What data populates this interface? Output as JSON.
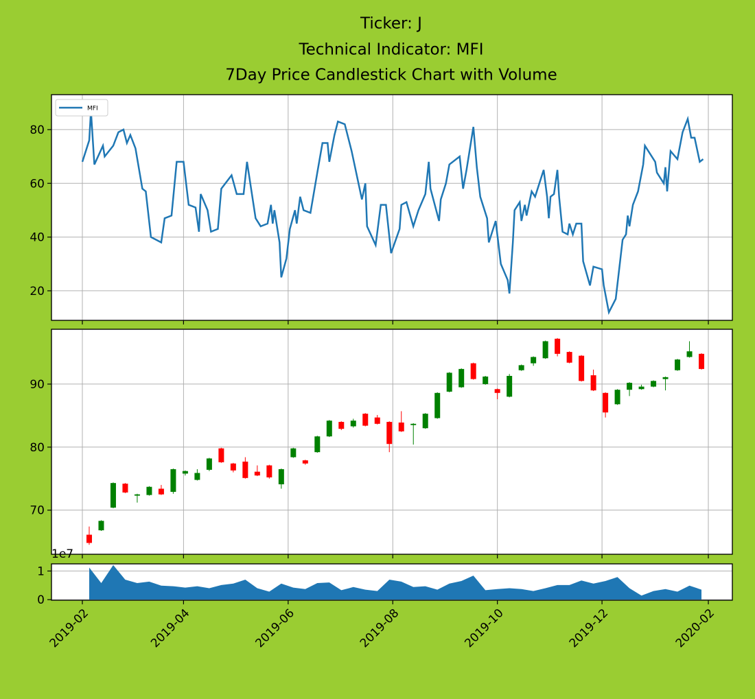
{
  "chart_data": [
    {
      "type": "line",
      "title": [
        "Ticker: J",
        "Technical Indicator: MFI",
        "7Day Price Candlestick Chart with Volume"
      ],
      "x": [
        "2019-02-01",
        "2019-02-05",
        "2019-02-06",
        "2019-02-08",
        "2019-02-13",
        "2019-02-14",
        "2019-02-19",
        "2019-02-22",
        "2019-02-25",
        "2019-02-27",
        "2019-03-01",
        "2019-03-04",
        "2019-03-08",
        "2019-03-10",
        "2019-03-13",
        "2019-03-19",
        "2019-03-21",
        "2019-03-25",
        "2019-03-28",
        "2019-04-01",
        "2019-04-04",
        "2019-04-08",
        "2019-04-10",
        "2019-04-11",
        "2019-04-15",
        "2019-04-17",
        "2019-04-21",
        "2019-04-23",
        "2019-04-29",
        "2019-05-02",
        "2019-05-06",
        "2019-05-08",
        "2019-05-13",
        "2019-05-16",
        "2019-05-20",
        "2019-05-22",
        "2019-05-23",
        "2019-05-24",
        "2019-05-27",
        "2019-05-28",
        "2019-05-31",
        "2019-06-02",
        "2019-06-05",
        "2019-06-06",
        "2019-06-08",
        "2019-06-10",
        "2019-06-14",
        "2019-06-18",
        "2019-06-21",
        "2019-06-24",
        "2019-06-25",
        "2019-06-28",
        "2019-06-30",
        "2019-07-04",
        "2019-07-08",
        "2019-07-14",
        "2019-07-16",
        "2019-07-17",
        "2019-07-22",
        "2019-07-25",
        "2019-07-28",
        "2019-07-31",
        "2019-08-05",
        "2019-08-06",
        "2019-08-09",
        "2019-08-13",
        "2019-08-16",
        "2019-08-20",
        "2019-08-22",
        "2019-08-23",
        "2019-08-28",
        "2019-08-29",
        "2019-09-01",
        "2019-09-03",
        "2019-09-09",
        "2019-09-11",
        "2019-09-13",
        "2019-09-17",
        "2019-09-19",
        "2019-09-21",
        "2019-09-25",
        "2019-09-26",
        "2019-09-30",
        "2019-10-03",
        "2019-10-07",
        "2019-10-08",
        "2019-10-10",
        "2019-10-11",
        "2019-10-14",
        "2019-10-15",
        "2019-10-17",
        "2019-10-18",
        "2019-10-21",
        "2019-10-23",
        "2019-10-28",
        "2019-10-30",
        "2019-10-31",
        "2019-11-01",
        "2019-11-03",
        "2019-11-05",
        "2019-11-06",
        "2019-11-08",
        "2019-11-11",
        "2019-11-12",
        "2019-11-14",
        "2019-11-16",
        "2019-11-19",
        "2019-11-20",
        "2019-11-24",
        "2019-11-26",
        "2019-12-01",
        "2019-12-02",
        "2019-12-05",
        "2019-12-09",
        "2019-12-13",
        "2019-12-15",
        "2019-12-16",
        "2019-12-17",
        "2019-12-19",
        "2019-12-22",
        "2019-12-25",
        "2019-12-26",
        "2020-01-01",
        "2020-01-02",
        "2020-01-06",
        "2020-01-07",
        "2020-01-08",
        "2020-01-10",
        "2020-01-14",
        "2020-01-17",
        "2020-01-20",
        "2020-01-22",
        "2020-01-24",
        "2020-01-27",
        "2020-01-29"
      ],
      "series": [
        {
          "name": "MFI",
          "color": "#1f77b4",
          "values": [
            68,
            76,
            87,
            67,
            74,
            70,
            74,
            79,
            80,
            75,
            78,
            73,
            58,
            57,
            40,
            38,
            47,
            48,
            68,
            68,
            52,
            51,
            42,
            56,
            50,
            42,
            43,
            58,
            63,
            56,
            56,
            68,
            47,
            44,
            45,
            52,
            45,
            50,
            38,
            25,
            32,
            43,
            50,
            45,
            55,
            50,
            49,
            64,
            75,
            75,
            68,
            78,
            83,
            82,
            72,
            54,
            60,
            44,
            37,
            52,
            52,
            34,
            43,
            52,
            53,
            44,
            50,
            56,
            68,
            58,
            46,
            54,
            60,
            67,
            70,
            58,
            65,
            81,
            66,
            55,
            47,
            38,
            46,
            30,
            24,
            19,
            38,
            50,
            53,
            46,
            52,
            48,
            57,
            55,
            65,
            55,
            47,
            55,
            56,
            65,
            55,
            42,
            41,
            45,
            41,
            45,
            45,
            31,
            22,
            29,
            28,
            22,
            12,
            17,
            39,
            41,
            48,
            44,
            52,
            57,
            67,
            74,
            68,
            64,
            60,
            66,
            57,
            72,
            69,
            79,
            84,
            77,
            77,
            68,
            69
          ]
        }
      ],
      "ylim": [
        9,
        93
      ],
      "yticks": [
        20,
        40,
        60,
        80
      ],
      "grid": true,
      "legend": "upper left"
    },
    {
      "type": "candlestick",
      "x": [
        "2019-02-05",
        "2019-02-12",
        "2019-02-19",
        "2019-02-26",
        "2019-03-05",
        "2019-03-12",
        "2019-03-19",
        "2019-03-26",
        "2019-04-02",
        "2019-04-09",
        "2019-04-16",
        "2019-04-23",
        "2019-04-30",
        "2019-05-07",
        "2019-05-14",
        "2019-05-21",
        "2019-05-28",
        "2019-06-04",
        "2019-06-11",
        "2019-06-18",
        "2019-06-25",
        "2019-07-02",
        "2019-07-09",
        "2019-07-16",
        "2019-07-23",
        "2019-07-30",
        "2019-08-06",
        "2019-08-13",
        "2019-08-20",
        "2019-08-27",
        "2019-09-03",
        "2019-09-10",
        "2019-09-17",
        "2019-09-24",
        "2019-10-01",
        "2019-10-08",
        "2019-10-15",
        "2019-10-22",
        "2019-10-29",
        "2019-11-05",
        "2019-11-12",
        "2019-11-19",
        "2019-11-26",
        "2019-12-03",
        "2019-12-10",
        "2019-12-17",
        "2019-12-24",
        "2019-12-31",
        "2020-01-07",
        "2020-01-14",
        "2020-01-21",
        "2020-01-28"
      ],
      "open": [
        66.1,
        66.8,
        70.4,
        74.2,
        72.3,
        72.4,
        73.4,
        72.9,
        75.8,
        74.8,
        76.4,
        79.8,
        77.4,
        77.7,
        76.1,
        77.1,
        74.1,
        78.4,
        77.9,
        79.2,
        81.7,
        84.0,
        83.3,
        85.3,
        84.7,
        84.0,
        83.9,
        83.5,
        83.0,
        84.6,
        88.8,
        89.5,
        93.3,
        90.0,
        89.2,
        88.0,
        92.2,
        93.3,
        94.1,
        97.2,
        95.1,
        94.5,
        91.4,
        88.6,
        86.8,
        89.1,
        89.2,
        89.6,
        90.8,
        92.2,
        94.3,
        94.8
      ],
      "high": [
        67.4,
        68.4,
        74.4,
        74.3,
        72.6,
        73.8,
        74.0,
        76.6,
        76.3,
        76.5,
        78.3,
        79.9,
        77.5,
        78.4,
        77.1,
        77.2,
        76.6,
        79.9,
        78.0,
        81.8,
        84.3,
        84.1,
        84.5,
        85.4,
        85.1,
        84.1,
        85.7,
        83.8,
        85.4,
        88.7,
        91.9,
        92.5,
        93.4,
        91.3,
        89.3,
        91.6,
        93.1,
        94.4,
        96.9,
        97.3,
        95.2,
        94.6,
        92.3,
        88.7,
        89.2,
        90.3,
        89.9,
        90.6,
        91.2,
        94.0,
        96.8,
        94.9
      ],
      "low": [
        64.5,
        66.7,
        70.3,
        72.7,
        71.2,
        72.3,
        72.4,
        72.6,
        75.5,
        74.7,
        76.2,
        77.5,
        76.0,
        75.0,
        75.4,
        75.0,
        73.4,
        78.3,
        77.2,
        79.1,
        81.6,
        82.7,
        83.1,
        83.3,
        83.6,
        79.2,
        82.4,
        80.4,
        82.9,
        84.5,
        88.7,
        89.4,
        90.7,
        89.9,
        87.6,
        87.9,
        92.1,
        92.9,
        94.0,
        94.4,
        93.3,
        90.4,
        88.9,
        84.7,
        86.7,
        88.1,
        89.1,
        89.5,
        89.0,
        92.1,
        94.2,
        92.3
      ],
      "close": [
        64.8,
        68.3,
        74.3,
        72.8,
        72.5,
        73.7,
        72.5,
        76.5,
        76.2,
        75.9,
        78.2,
        77.6,
        76.3,
        75.1,
        75.5,
        75.2,
        76.5,
        79.8,
        77.4,
        81.7,
        84.2,
        82.9,
        84.2,
        83.4,
        83.7,
        80.5,
        82.5,
        83.7,
        85.3,
        88.6,
        91.8,
        92.4,
        90.8,
        91.2,
        88.6,
        91.3,
        93.0,
        94.3,
        96.8,
        94.8,
        93.4,
        90.5,
        89.0,
        85.5,
        89.1,
        90.2,
        89.6,
        90.5,
        91.1,
        93.9,
        95.2,
        92.4
      ],
      "up_color": "green",
      "down_color": "red",
      "ylim": [
        63,
        98.7
      ],
      "yticks": [
        70,
        80,
        90
      ],
      "grid": true
    },
    {
      "type": "area",
      "x": [
        "2019-02-05",
        "2019-02-12",
        "2019-02-19",
        "2019-02-26",
        "2019-03-05",
        "2019-03-12",
        "2019-03-19",
        "2019-03-26",
        "2019-04-02",
        "2019-04-09",
        "2019-04-16",
        "2019-04-23",
        "2019-04-30",
        "2019-05-07",
        "2019-05-14",
        "2019-05-21",
        "2019-05-28",
        "2019-06-04",
        "2019-06-11",
        "2019-06-18",
        "2019-06-25",
        "2019-07-02",
        "2019-07-09",
        "2019-07-16",
        "2019-07-23",
        "2019-07-30",
        "2019-08-06",
        "2019-08-13",
        "2019-08-20",
        "2019-08-27",
        "2019-09-03",
        "2019-09-10",
        "2019-09-17",
        "2019-09-24",
        "2019-10-01",
        "2019-10-08",
        "2019-10-15",
        "2019-10-22",
        "2019-10-29",
        "2019-11-05",
        "2019-11-12",
        "2019-11-19",
        "2019-11-26",
        "2019-12-03",
        "2019-12-10",
        "2019-12-17",
        "2019-12-24",
        "2019-12-31",
        "2020-01-07",
        "2020-01-14",
        "2020-01-21",
        "2020-01-28"
      ],
      "values": [
        11200000,
        5800000,
        12100000,
        7000000,
        5800000,
        6300000,
        4900000,
        4700000,
        4200000,
        4700000,
        4000000,
        5100000,
        5600000,
        7000000,
        4000000,
        2800000,
        5600000,
        4200000,
        3700000,
        5800000,
        6000000,
        3300000,
        4400000,
        3500000,
        3000000,
        7000000,
        6300000,
        4400000,
        4700000,
        3500000,
        5600000,
        6500000,
        8400000,
        3300000,
        3700000,
        4000000,
        3700000,
        3000000,
        4000000,
        5100000,
        5100000,
        6700000,
        5600000,
        6500000,
        7900000,
        4000000,
        1400000,
        3000000,
        3700000,
        2800000,
        4900000,
        3500000
      ],
      "color": "#1f77b4",
      "ylim": [
        -200000,
        12500000
      ],
      "yticks": [
        0,
        {
          "value": 10000000,
          "label": "1"
        }
      ],
      "offset_label": "1e7",
      "grid": true,
      "xlim": [
        "2019-01-14",
        "2020-02-15"
      ],
      "xticks": [
        {
          "value": "2019-02-01",
          "label": "2019-02"
        },
        {
          "value": "2019-04-01",
          "label": "2019-04"
        },
        {
          "value": "2019-06-01",
          "label": "2019-06"
        },
        {
          "value": "2019-08-01",
          "label": "2019-08"
        },
        {
          "value": "2019-10-01",
          "label": "2019-10"
        },
        {
          "value": "2019-12-01",
          "label": "2019-12"
        },
        {
          "value": "2020-02-01",
          "label": "2020-02"
        }
      ]
    }
  ]
}
